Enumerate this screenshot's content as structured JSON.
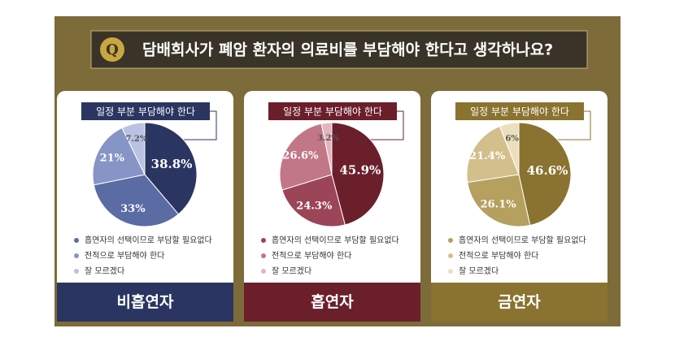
{
  "header": {
    "badge": "Q",
    "question": "담배회사가 폐암 환자의 의료비를 부담해야 한다고 생각하나요?"
  },
  "chart_data": [
    {
      "type": "pie",
      "title": "일정 부분 부담해야 한다",
      "group": "비흡연자",
      "categories": [
        "일정 부분 부담해야 한다",
        "흡연자의 선택이므로 부담할 필요없다",
        "전적으로 부담해야 한다",
        "잘 모르겠다"
      ],
      "values": [
        38.8,
        33,
        21,
        7.2
      ],
      "value_labels": [
        "38.8%",
        "33%",
        "21%",
        "7.2%"
      ],
      "colors": [
        "#2b3561",
        "#5b6ba3",
        "#8794c6",
        "#b8c2e2"
      ]
    },
    {
      "type": "pie",
      "title": "일정 부분 부담해야 한다",
      "group": "흡연자",
      "categories": [
        "일정 부분 부담해야 한다",
        "흡연자의 선택이므로 부담할 필요없다",
        "전적으로 부담해야 한다",
        "잘 모르겠다"
      ],
      "values": [
        45.9,
        24.3,
        26.6,
        3.2
      ],
      "value_labels": [
        "45.9%",
        "24.3%",
        "26.6%",
        "3.2%"
      ],
      "colors": [
        "#6b1f2b",
        "#9c4558",
        "#c27786",
        "#e4b5be"
      ]
    },
    {
      "type": "pie",
      "title": "일정 부분 부담해야 한다",
      "group": "금연자",
      "categories": [
        "일정 부분 부담해야 한다",
        "흡연자의 선택이므로 부담할 필요없다",
        "전적으로 부담해야 한다",
        "잘 모르겠다"
      ],
      "values": [
        46.6,
        26.1,
        21.4,
        6
      ],
      "value_labels": [
        "46.6%",
        "26.1%",
        "21.4%",
        "6%"
      ],
      "colors": [
        "#8a7330",
        "#b6a060",
        "#d2bf8c",
        "#ecdfbd"
      ]
    }
  ]
}
